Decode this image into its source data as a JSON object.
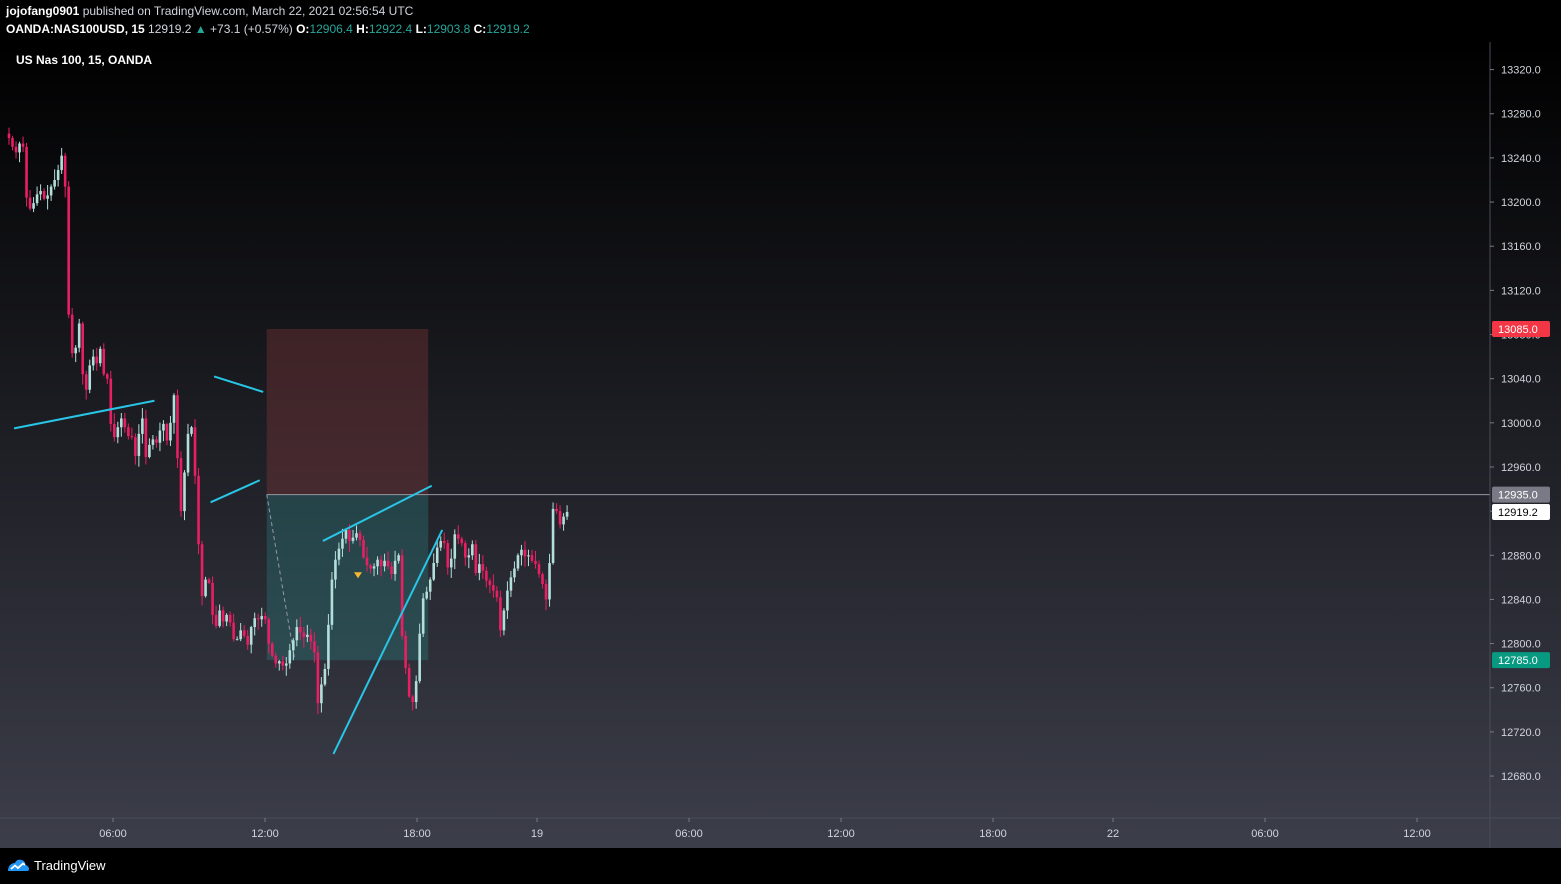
{
  "header": {
    "author": "jojofang0901",
    "published_text": "published on TradingView.com, March 22, 2021 02:56:54 UTC",
    "symbol": "OANDA:NAS100USD, 15",
    "last": "12919.2",
    "change_arrow": "▲",
    "change": "+73.1 (+0.57%)",
    "o_label": "O:",
    "o_value": "12906.4",
    "h_label": "H:",
    "h_value": "12922.4",
    "l_label": "L:",
    "l_value": "12903.8",
    "c_label": "C:",
    "c_value": "12919.2"
  },
  "footer": {
    "brand": "TradingView",
    "logo_icon": "tradingview-logo-icon"
  },
  "colors": {
    "up": "#b2dfdb",
    "down": "#e91e63",
    "trendline": "#29c5e6",
    "stop_zone": "#8a3a3d",
    "target_zone": "#2a8080",
    "price_marker_red": "#f23645",
    "price_marker_green": "#089981",
    "price_marker_gray": "#787b86"
  },
  "chart_data": {
    "type": "candlestick",
    "title": "US Nas 100, 15, OANDA",
    "y_axis_ticks": [
      "12680.0",
      "12720.0",
      "12760.0",
      "12800.0",
      "12840.0",
      "12880.0",
      "12920.0",
      "12960.0",
      "13000.0",
      "13040.0",
      "13080.0",
      "13120.0",
      "13160.0",
      "13200.0",
      "13240.0",
      "13280.0",
      "13320.0"
    ],
    "x_axis_ticks": [
      "06:00",
      "12:00",
      "18:00",
      "19",
      "06:00",
      "12:00",
      "18:00",
      "22",
      "06:00",
      "12:00"
    ],
    "ylim": [
      12642,
      13345
    ],
    "grid": false,
    "price_labels": [
      {
        "label": "13085.0",
        "value": 13085.0,
        "color": "#f23645"
      },
      {
        "label": "12935.0",
        "value": 12935.0,
        "color": "#787b86"
      },
      {
        "label": "12919.2",
        "value": 12919.2,
        "color": "#ffffff"
      },
      {
        "label": "12785.0",
        "value": 12785.0,
        "color": "#089981"
      }
    ],
    "position": {
      "entry": 12935.0,
      "stop": 13085.0,
      "target": 12785.0
    },
    "close_path": [
      13258,
      13250,
      13245,
      13253,
      13250,
      13204,
      13194,
      13199,
      13207,
      13210,
      13203,
      13206,
      13214,
      13220,
      13229,
      13242,
      13214,
      13098,
      13063,
      13068,
      13090,
      13044,
      13030,
      13052,
      13060,
      13054,
      13067,
      13044,
      13040,
      12999,
      12987,
      12996,
      13004,
      12996,
      12988,
      12987,
      12970,
      12990,
      13004,
      12969,
      12980,
      12985,
      12982,
      12993,
      12999,
      12984,
      13000,
      13025,
      12968,
      12920,
      12955,
      12990,
      12996,
      12952,
      12890,
      12843,
      12858,
      12855,
      12826,
      12816,
      12830,
      12820,
      12826,
      12819,
      12804,
      12804,
      12812,
      12807,
      12799,
      12815,
      12823,
      12822,
      12825,
      12822,
      12800,
      12789,
      12782,
      12784,
      12780,
      12782,
      12794,
      12803,
      12815,
      12810,
      12806,
      12808,
      12802,
      12792,
      12746,
      12763,
      12777,
      12817,
      12858,
      12876,
      12886,
      12895,
      12903,
      12893,
      12896,
      12900,
      12894,
      12878,
      12871,
      12868,
      12870,
      12876,
      12870,
      12875,
      12870,
      12863,
      12875,
      12880,
      12807,
      12778,
      12752,
      12747,
      12766,
      12809,
      12841,
      12847,
      12858,
      12873,
      12887,
      12893,
      12891,
      12869,
      12877,
      12899,
      12895,
      12891,
      12878,
      12880,
      12890,
      12864,
      12872,
      12866,
      12857,
      12853,
      12848,
      12842,
      12812,
      12830,
      12848,
      12860,
      12868,
      12880,
      12885,
      12879,
      12880,
      12875,
      12872,
      12863,
      12854,
      12840,
      12873,
      12922,
      12920,
      12908,
      12915,
      12919.2
    ],
    "drawings": [
      {
        "type": "trendline",
        "from": {
          "x": "2021-03-18 23:00",
          "y": 12995
        },
        "to": {
          "x": "2021-03-19 09:00",
          "y": 13020
        }
      },
      {
        "type": "trendline",
        "from": {
          "x": "2021-03-19 13:15",
          "y": 13042
        },
        "to": {
          "x": "2021-03-19 16:45",
          "y": 13028
        }
      },
      {
        "type": "trendline",
        "from": {
          "x": "2021-03-19 13:00",
          "y": 12928
        },
        "to": {
          "x": "2021-03-19 16:30",
          "y": 12948
        }
      },
      {
        "type": "trendline",
        "from": {
          "x": "2021-03-19 21:00",
          "y": 12893
        },
        "to": {
          "x": "2021-03-22 04:45",
          "y": 12943
        }
      },
      {
        "type": "trendline",
        "from": {
          "x": "2021-03-19 21:45",
          "y": 12700
        },
        "to": {
          "x": "2021-03-22 05:30",
          "y": 12903
        }
      }
    ]
  }
}
